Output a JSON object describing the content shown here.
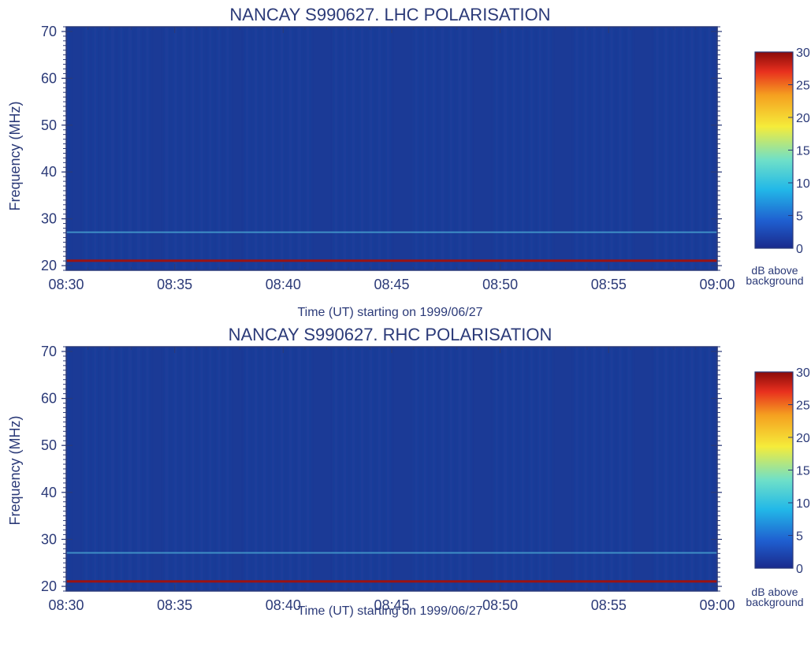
{
  "chart_data": [
    {
      "type": "heatmap",
      "title": "NANCAY  S990627.   LHC POLARISATION",
      "xlabel": "Time (UT) starting on 1999/06/27",
      "ylabel": "Frequency (MHz)",
      "xlim": [
        "08:30",
        "09:00"
      ],
      "ylim": [
        19,
        71
      ],
      "x_ticks": [
        "08:30",
        "08:35",
        "08:40",
        "08:45",
        "08:50",
        "08:55",
        "09:00"
      ],
      "y_ticks": [
        20,
        30,
        40,
        50,
        60,
        70
      ],
      "colorbar": {
        "ticks": [
          0,
          5,
          10,
          15,
          20,
          25,
          30
        ],
        "label_line1": "dB above",
        "label_line2": "background",
        "colors": [
          "#1a2a8c",
          "#1f5fd0",
          "#22b8e8",
          "#6fe0c8",
          "#f5ec3a",
          "#f5a020",
          "#e8301e",
          "#8a0a0a"
        ]
      },
      "grid": false
    },
    {
      "type": "heatmap",
      "title": "NANCAY  S990627.   RHC POLARISATION",
      "xlabel": "Time (UT) starting on 1999/06/27",
      "ylabel": "Frequency (MHz)",
      "xlim": [
        "08:30",
        "09:00"
      ],
      "ylim": [
        19,
        71
      ],
      "x_ticks": [
        "08:30",
        "08:35",
        "08:40",
        "08:45",
        "08:50",
        "08:55",
        "09:00"
      ],
      "y_ticks": [
        20,
        30,
        40,
        50,
        60,
        70
      ],
      "colorbar": {
        "ticks": [
          0,
          5,
          10,
          15,
          20,
          25,
          30
        ],
        "label_line1": "dB above",
        "label_line2": "background",
        "colors": [
          "#1a2a8c",
          "#1f5fd0",
          "#22b8e8",
          "#6fe0c8",
          "#f5ec3a",
          "#f5a020",
          "#e8301e",
          "#8a0a0a"
        ]
      },
      "grid": false
    }
  ]
}
